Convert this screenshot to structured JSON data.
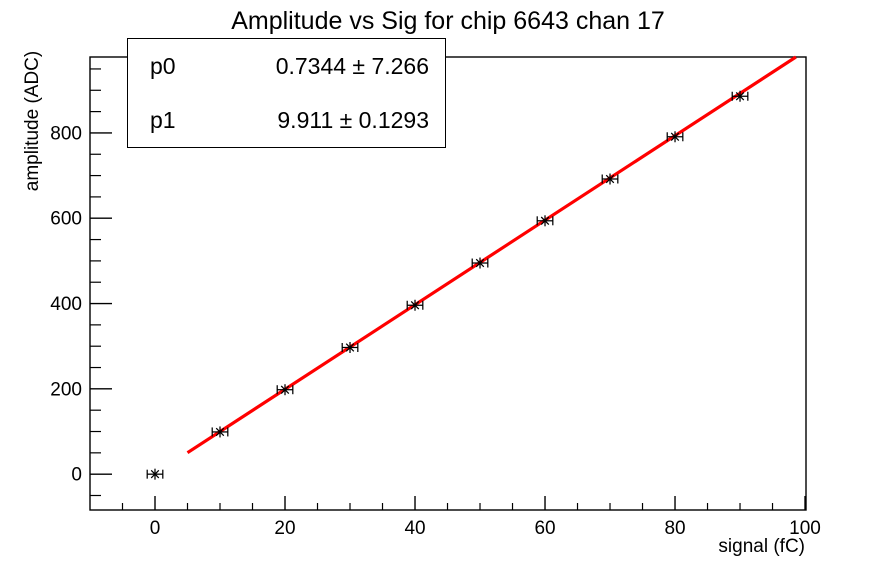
{
  "window": {
    "background": "#ffffff"
  },
  "chart_data": {
    "type": "scatter",
    "title": "Amplitude vs Sig for chip 6643 chan 17",
    "xlabel": "signal (fC)",
    "ylabel": "amplitude (ADC)",
    "xlim": [
      -10,
      100.15
    ],
    "ylim": [
      -84,
      978
    ],
    "x_major_ticks": [
      0,
      20,
      40,
      60,
      80,
      100
    ],
    "x_minor_step": 5,
    "y_major_ticks": [
      0,
      200,
      400,
      600,
      800
    ],
    "y_minor_step": 50,
    "grid": false,
    "legend_position": "none",
    "axis_color": "#000000",
    "points": {
      "x": [
        0,
        10,
        20,
        30,
        40,
        50,
        60,
        70,
        80,
        90
      ],
      "y": [
        0,
        99,
        198,
        297,
        396,
        495,
        594,
        692,
        791,
        886
      ],
      "x_error": 1.2,
      "marker": "asterisk",
      "color": "#000000"
    },
    "fit": {
      "type": "linear",
      "p0": 0.7344,
      "p1": 9.911,
      "x_range": [
        5,
        98.6
      ],
      "color": "#ff0000"
    },
    "stats_box": {
      "rows": [
        {
          "name": "p0",
          "value": "0.7344 ± 7.266"
        },
        {
          "name": "p1",
          "value": "9.911 ± 0.1293"
        }
      ]
    }
  }
}
